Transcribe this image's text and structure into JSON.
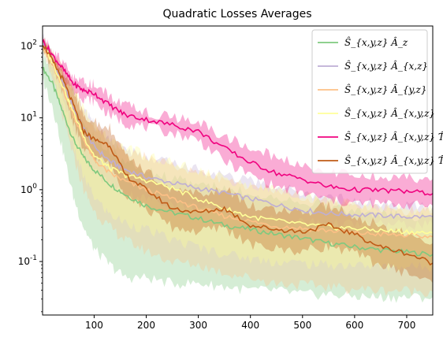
{
  "chart_data": {
    "type": "line",
    "title": "Quadratic Losses Averages",
    "xlabel": "",
    "ylabel": "",
    "xlim": [
      1,
      750
    ],
    "ylim": [
      0.018,
      190
    ],
    "yscale": "log",
    "grid": false,
    "legend_position": "top-right",
    "x_ticks": [
      100,
      200,
      300,
      400,
      500,
      600,
      700
    ],
    "x_tick_labels": [
      "100",
      "200",
      "300",
      "400",
      "500",
      "600",
      "700"
    ],
    "y_ticks": [
      0.1,
      1,
      10,
      100
    ],
    "y_tick_labels": [
      "10^-1",
      "10^0",
      "10^1",
      "10^2"
    ],
    "series": [
      {
        "name": "Ŝ_{x,y,z} Â_z",
        "color": "#7fc97f",
        "x": [
          1,
          20,
          40,
          60,
          80,
          100,
          130,
          160,
          200,
          250,
          300,
          350,
          400,
          450,
          500,
          550,
          600,
          650,
          700,
          750
        ],
        "mean": [
          50,
          30,
          12,
          5,
          2.8,
          1.9,
          1.2,
          0.85,
          0.6,
          0.48,
          0.4,
          0.32,
          0.28,
          0.24,
          0.21,
          0.18,
          0.16,
          0.145,
          0.135,
          0.125
        ],
        "lower": [
          35,
          15,
          3.5,
          0.8,
          0.3,
          0.15,
          0.09,
          0.06,
          0.06,
          0.05,
          0.05,
          0.045,
          0.04,
          0.04,
          0.035,
          0.035,
          0.033,
          0.032,
          0.032,
          0.032
        ],
        "upper": [
          70,
          50,
          28,
          14,
          8,
          5.5,
          3.5,
          2.5,
          1.8,
          1.4,
          1.2,
          1.0,
          0.9,
          0.8,
          0.7,
          0.6,
          0.5,
          0.45,
          0.42,
          0.4
        ]
      },
      {
        "name": "Ŝ_{x,y,z} Â_{x,z}",
        "color": "#beaed4",
        "x": [
          1,
          20,
          40,
          60,
          80,
          100,
          130,
          160,
          200,
          250,
          300,
          350,
          400,
          450,
          500,
          550,
          600,
          650,
          700,
          750
        ],
        "mean": [
          110,
          60,
          30,
          14,
          7,
          4,
          2.5,
          1.9,
          1.5,
          1.25,
          1.05,
          0.9,
          0.75,
          0.62,
          0.52,
          0.47,
          0.45,
          0.44,
          0.42,
          0.42
        ],
        "lower": [
          95,
          45,
          18,
          7,
          3,
          1.8,
          1.2,
          0.9,
          0.75,
          0.65,
          0.55,
          0.48,
          0.42,
          0.38,
          0.36,
          0.34,
          0.33,
          0.33,
          0.33,
          0.33
        ],
        "upper": [
          130,
          80,
          45,
          24,
          13,
          8,
          5,
          3.5,
          2.8,
          2.3,
          1.9,
          1.6,
          1.3,
          1.1,
          0.9,
          0.78,
          0.7,
          0.65,
          0.6,
          0.58
        ]
      },
      {
        "name": "Ŝ_{x,y,z} Â_{y,z}",
        "color": "#fdc086",
        "x": [
          1,
          20,
          40,
          60,
          80,
          100,
          130,
          160,
          200,
          250,
          300,
          350,
          400,
          450,
          500,
          550,
          600,
          650,
          700,
          750
        ],
        "mean": [
          100,
          55,
          25,
          11,
          5,
          2.6,
          1.7,
          1.3,
          1.0,
          0.75,
          0.55,
          0.43,
          0.36,
          0.31,
          0.29,
          0.27,
          0.25,
          0.24,
          0.23,
          0.22
        ],
        "lower": [
          80,
          35,
          10,
          3,
          1.0,
          0.5,
          0.3,
          0.2,
          0.14,
          0.1,
          0.09,
          0.07,
          0.06,
          0.05,
          0.048,
          0.045,
          0.042,
          0.04,
          0.04,
          0.038
        ],
        "upper": [
          125,
          80,
          45,
          24,
          12,
          7,
          4.5,
          3.5,
          2.8,
          2.2,
          1.7,
          1.3,
          1.1,
          0.95,
          0.8,
          0.7,
          0.6,
          0.55,
          0.5,
          0.48
        ]
      },
      {
        "name": "Ŝ_{x,y,z} Â_{x,y,z}",
        "color": "#ffff99",
        "x": [
          1,
          20,
          40,
          60,
          80,
          100,
          130,
          160,
          200,
          250,
          300,
          350,
          400,
          450,
          500,
          550,
          600,
          650,
          700,
          750
        ],
        "mean": [
          105,
          60,
          28,
          12,
          5.5,
          3.0,
          2.0,
          1.6,
          1.35,
          1.05,
          0.75,
          0.55,
          0.42,
          0.37,
          0.33,
          0.3,
          0.29,
          0.27,
          0.26,
          0.25
        ],
        "lower": [
          85,
          40,
          13,
          4,
          1.5,
          0.8,
          0.45,
          0.35,
          0.28,
          0.2,
          0.16,
          0.13,
          0.11,
          0.1,
          0.095,
          0.09,
          0.09,
          0.085,
          0.085,
          0.085
        ],
        "upper": [
          130,
          85,
          50,
          28,
          14,
          8,
          5,
          3.8,
          3.0,
          2.4,
          1.8,
          1.4,
          1.1,
          0.95,
          0.8,
          0.7,
          0.62,
          0.56,
          0.52,
          0.5
        ]
      },
      {
        "name": "Ŝ_{x,y,z} Â_{x,y,z} T̂_{xz}",
        "color": "#f0027f",
        "x": [
          1,
          20,
          40,
          60,
          80,
          100,
          130,
          160,
          200,
          250,
          300,
          350,
          400,
          450,
          500,
          550,
          600,
          650,
          700,
          750
        ],
        "mean": [
          120,
          75,
          48,
          30,
          24,
          22,
          15,
          11,
          9.5,
          8,
          6.5,
          3.8,
          2.4,
          1.7,
          1.4,
          1.1,
          1.0,
          0.98,
          0.95,
          0.88
        ],
        "lower": [
          110,
          65,
          38,
          24,
          19,
          17,
          11,
          8.5,
          7.5,
          6.2,
          5.0,
          2.5,
          1.6,
          1.1,
          0.9,
          0.72,
          0.65,
          0.64,
          0.62,
          0.6
        ],
        "upper": [
          130,
          88,
          58,
          36,
          30,
          29,
          20,
          14.5,
          12,
          10,
          8.5,
          5.5,
          3.8,
          2.8,
          2.2,
          1.8,
          1.6,
          1.5,
          1.45,
          1.4
        ]
      },
      {
        "name": "Ŝ_{x,y,z} Â_{x,y,z} T̂_{xy}",
        "color": "#bf5b17",
        "x": [
          1,
          20,
          40,
          60,
          80,
          100,
          130,
          160,
          200,
          250,
          300,
          350,
          400,
          450,
          500,
          550,
          600,
          650,
          700,
          750
        ],
        "mean": [
          110,
          62,
          34,
          15,
          6.5,
          5.0,
          4.2,
          1.6,
          1.0,
          0.55,
          0.48,
          0.55,
          0.32,
          0.28,
          0.26,
          0.32,
          0.24,
          0.16,
          0.13,
          0.095
        ],
        "lower": [
          100,
          50,
          24,
          9,
          3.5,
          2.8,
          2.3,
          0.9,
          0.55,
          0.3,
          0.26,
          0.3,
          0.17,
          0.15,
          0.14,
          0.17,
          0.13,
          0.09,
          0.07,
          0.05
        ],
        "upper": [
          125,
          78,
          46,
          24,
          11,
          8.5,
          7.2,
          2.8,
          1.8,
          1.0,
          0.9,
          1.0,
          0.6,
          0.52,
          0.48,
          0.58,
          0.44,
          0.3,
          0.24,
          0.18
        ]
      }
    ]
  }
}
